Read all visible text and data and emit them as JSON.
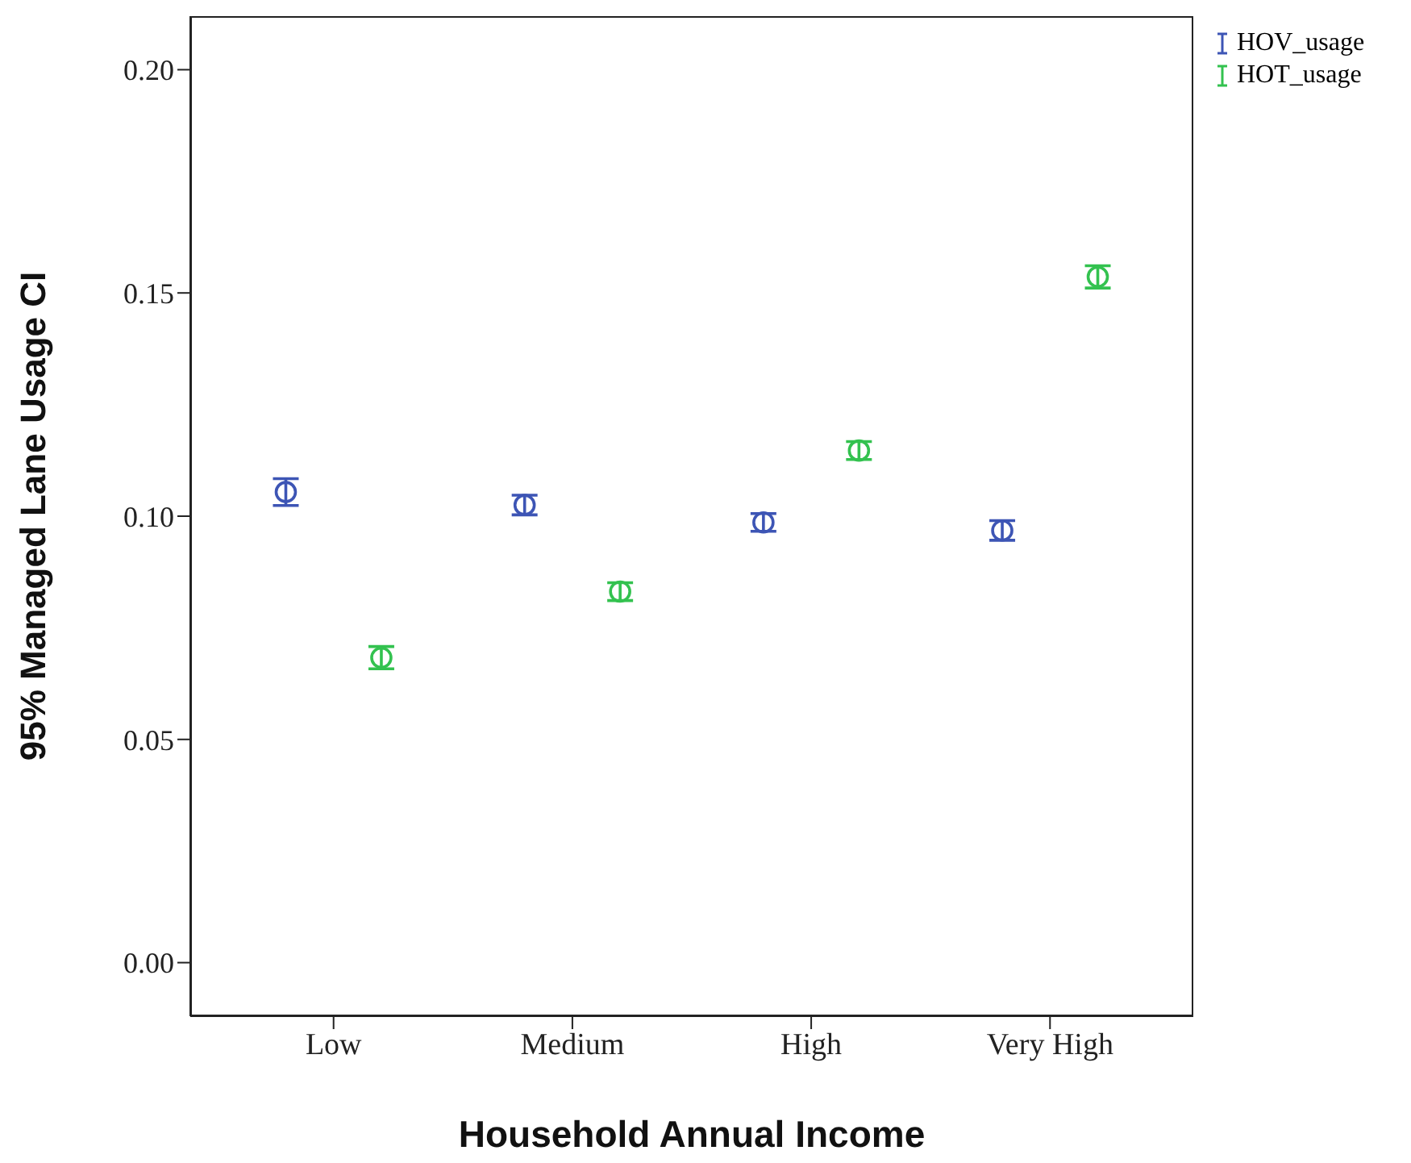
{
  "chart_data": {
    "type": "scatter",
    "xlabel": "Household Annual Income",
    "ylabel": "95% Managed Lane Usage CI",
    "categories": [
      "Low",
      "Medium",
      "High",
      "Very High"
    ],
    "series": [
      {
        "name": "HOV_usage",
        "color": "#3d55b5",
        "values": [
          0.1054,
          0.1025,
          0.0986,
          0.0968
        ],
        "errors": [
          0.003,
          0.0022,
          0.002,
          0.0022
        ]
      },
      {
        "name": "HOT_usage",
        "color": "#33c24f",
        "values": [
          0.0683,
          0.0831,
          0.1147,
          0.1536
        ],
        "errors": [
          0.0025,
          0.002,
          0.002,
          0.0025
        ]
      }
    ],
    "ylim": [
      -0.012,
      0.212
    ],
    "yticks": [
      {
        "value": 0,
        "label": "0.00"
      },
      {
        "value": 0.05,
        "label": "0.05"
      },
      {
        "value": 0.1,
        "label": "0.10"
      },
      {
        "value": 0.15,
        "label": "0.15"
      },
      {
        "value": 0.2,
        "label": "0.20"
      }
    ],
    "marker": "circle",
    "grid": false,
    "legend": "top right"
  }
}
